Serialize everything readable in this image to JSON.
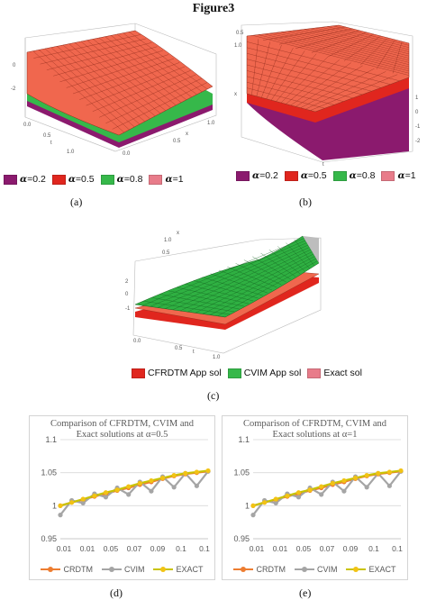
{
  "figure_title": "Figure3",
  "panels": {
    "a": {
      "caption": "(a)",
      "legend": [
        {
          "prefix": "α",
          "text": "=0.2",
          "color": "#8b1a6e"
        },
        {
          "prefix": "α",
          "text": "=0.5",
          "color": "#e0261e"
        },
        {
          "prefix": "α",
          "text": "=0.8",
          "color": "#36b84a"
        },
        {
          "prefix": "α",
          "text": "=1",
          "color": "#e87c8a"
        }
      ],
      "ticks": {
        "z": [
          "0",
          "-2"
        ],
        "t": [
          "0.0",
          "0.5",
          "1.0"
        ],
        "x": [
          "0.0",
          "0.5",
          "1.0"
        ],
        "t_label": "t",
        "x_label": "x"
      }
    },
    "b": {
      "caption": "(b)",
      "legend": [
        {
          "prefix": "α",
          "text": "=0.2",
          "color": "#8b1a6e"
        },
        {
          "prefix": "α",
          "text": "=0.5",
          "color": "#e0261e"
        },
        {
          "prefix": "α",
          "text": "=0.8",
          "color": "#36b84a"
        },
        {
          "prefix": "α",
          "text": "=1",
          "color": "#e87c8a"
        }
      ],
      "ticks": {
        "top": [
          "0.5",
          "1.0"
        ],
        "right": [
          "1",
          "0",
          "-1",
          "-2"
        ],
        "bottom": [
          "0.0",
          "0.5",
          "1.0"
        ],
        "t_label": "t",
        "x_label": "x"
      }
    },
    "c": {
      "caption": "(c)",
      "legend": [
        {
          "text": "CFRDTM  App sol",
          "color": "#e0261e"
        },
        {
          "text": "CVIM  App sol",
          "color": "#36b84a"
        },
        {
          "text": "Exact sol",
          "color": "#e87c8a"
        }
      ],
      "ticks": {
        "top": [
          "1.0",
          "0.5"
        ],
        "left": [
          "2",
          "0",
          "-1"
        ],
        "bottom": [
          "0.0",
          "0.5",
          "1.0"
        ],
        "t_label": "t",
        "x_label": "x"
      }
    },
    "d": {
      "caption": "(d)"
    },
    "e": {
      "caption": "(e)"
    }
  },
  "colors": {
    "crdtm": "#ed7d31",
    "cvim": "#a5a5a5",
    "exact": "#c9c300",
    "exact_marker": "#f2c314"
  },
  "chart_data": [
    {
      "type": "line",
      "title": "Comparison of CFRDTM, CVIM and Exact solutions at α=0.5",
      "categories": [
        "0.01",
        "0.01",
        "0.05",
        "0.07",
        "0.09",
        "0.1",
        "0.1"
      ],
      "x": [
        0.01,
        0.02,
        0.03,
        0.04,
        0.05,
        0.06,
        0.07,
        0.08,
        0.09,
        0.1,
        0.1,
        0.1,
        0.1,
        0.1
      ],
      "ylim": [
        0.95,
        1.1
      ],
      "yticks": [
        "0.95",
        "1",
        "1.05",
        "1.1"
      ],
      "grid": true,
      "legend": "bottom",
      "series": [
        {
          "name": "CRDTM",
          "values": [
            1.0,
            1.005,
            1.009,
            1.014,
            1.018,
            1.023,
            1.027,
            1.032,
            1.036,
            1.041,
            1.045,
            1.048,
            1.05,
            1.052
          ]
        },
        {
          "name": "CVIM",
          "values": [
            0.986,
            1.008,
            1.004,
            1.018,
            1.013,
            1.027,
            1.017,
            1.036,
            1.022,
            1.044,
            1.028,
            1.049,
            1.03,
            1.052
          ]
        },
        {
          "name": "EXACT",
          "values": [
            1.0,
            1.005,
            1.01,
            1.015,
            1.02,
            1.024,
            1.029,
            1.034,
            1.038,
            1.042,
            1.046,
            1.049,
            1.051,
            1.053
          ]
        }
      ]
    },
    {
      "type": "line",
      "title": "Comparison of CFRDTM, CVIM and Exact solutions at α=1",
      "categories": [
        "0.01",
        "0.01",
        "0.05",
        "0.07",
        "0.09",
        "0.1",
        "0.1"
      ],
      "x": [
        0.01,
        0.02,
        0.03,
        0.04,
        0.05,
        0.06,
        0.07,
        0.08,
        0.09,
        0.1,
        0.1,
        0.1,
        0.1,
        0.1
      ],
      "ylim": [
        0.95,
        1.1
      ],
      "yticks": [
        "0.95",
        "1",
        "1.05",
        "1.1"
      ],
      "grid": true,
      "legend": "bottom",
      "series": [
        {
          "name": "CRDTM",
          "values": [
            1.0,
            1.005,
            1.009,
            1.014,
            1.018,
            1.023,
            1.027,
            1.032,
            1.036,
            1.041,
            1.045,
            1.048,
            1.05,
            1.052
          ]
        },
        {
          "name": "CVIM",
          "values": [
            0.986,
            1.008,
            1.004,
            1.018,
            1.013,
            1.027,
            1.017,
            1.036,
            1.022,
            1.044,
            1.028,
            1.049,
            1.03,
            1.052
          ]
        },
        {
          "name": "EXACT",
          "values": [
            1.0,
            1.005,
            1.01,
            1.015,
            1.02,
            1.024,
            1.029,
            1.034,
            1.038,
            1.042,
            1.046,
            1.049,
            1.051,
            1.053
          ]
        }
      ]
    }
  ]
}
